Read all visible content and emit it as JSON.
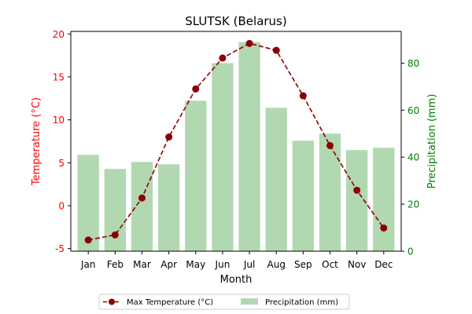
{
  "chart_data": {
    "type": "bar",
    "title": "SLUTSK (Belarus)",
    "xlabel": "Month",
    "categories": [
      "Jan",
      "Feb",
      "Mar",
      "Apr",
      "May",
      "Jun",
      "Jul",
      "Aug",
      "Sep",
      "Oct",
      "Nov",
      "Dec"
    ],
    "series": [
      {
        "name": "Max Temperature (°C)",
        "type": "line",
        "axis": "left",
        "color": "#8b0000",
        "values": [
          -4.0,
          -3.4,
          0.9,
          8.0,
          13.6,
          17.2,
          18.9,
          18.1,
          12.8,
          7.0,
          1.8,
          -2.6
        ]
      },
      {
        "name": "Precipitation (mm)",
        "type": "bar",
        "axis": "right",
        "color": "#b2d8b2",
        "values": [
          41,
          35,
          38,
          37,
          64,
          80,
          89,
          61,
          47,
          50,
          43,
          44
        ]
      }
    ],
    "y_left": {
      "label": "Temperature (°C)",
      "color": "#ff0000",
      "range": [
        -5.3,
        20.3
      ],
      "ticks": [
        -5,
        0,
        5,
        10,
        15,
        20
      ]
    },
    "y_right": {
      "label": "Precipitation (mm)",
      "color": "#008000",
      "range": [
        0,
        93.5
      ],
      "ticks": [
        0,
        20,
        40,
        60,
        80
      ]
    },
    "legend_position": "bottom-center",
    "grid": false
  }
}
